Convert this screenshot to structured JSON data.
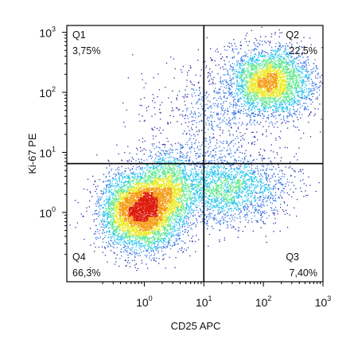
{
  "chart_data": {
    "type": "scatter",
    "subtype": "flow-cytometry-density-dot-plot",
    "xlabel": "CD25 APC",
    "ylabel": "Ki-67 PE",
    "x_scale": "log",
    "y_scale": "log",
    "xlim": [
      0.05,
      1000
    ],
    "ylim": [
      0.07,
      1300
    ],
    "x_ticks": [
      {
        "base": "10",
        "exp": "0",
        "value": 1
      },
      {
        "base": "10",
        "exp": "1",
        "value": 10
      },
      {
        "base": "10",
        "exp": "2",
        "value": 100
      },
      {
        "base": "10",
        "exp": "3",
        "value": 1000
      }
    ],
    "y_ticks": [
      {
        "base": "10",
        "exp": "0",
        "value": 1
      },
      {
        "base": "10",
        "exp": "1",
        "value": 10
      },
      {
        "base": "10",
        "exp": "2",
        "value": 100
      },
      {
        "base": "10",
        "exp": "3",
        "value": 1000
      }
    ],
    "gate": {
      "x": 10,
      "y": 6.5
    },
    "quadrants": [
      {
        "id": "Q1",
        "name": "Q1",
        "percent": "3,75%",
        "position": "top-left"
      },
      {
        "id": "Q2",
        "name": "Q2",
        "percent": "22,5%",
        "position": "top-right"
      },
      {
        "id": "Q3",
        "name": "Q3",
        "percent": "7,40%",
        "position": "bottom-right"
      },
      {
        "id": "Q4",
        "name": "Q4",
        "percent": "66,3%",
        "position": "bottom-left"
      }
    ],
    "populations": [
      {
        "cx": 0.9,
        "cy": 1.05,
        "sx": 0.33,
        "sy": 0.32,
        "n": 5200
      },
      {
        "cx": 2.5,
        "cy": 2.8,
        "sx": 0.25,
        "sy": 0.3,
        "n": 1300
      },
      {
        "cx": 130,
        "cy": 150,
        "sx": 0.35,
        "sy": 0.28,
        "n": 3200
      },
      {
        "cx": 25,
        "cy": 2.5,
        "sx": 0.5,
        "sy": 0.3,
        "n": 2100
      },
      {
        "cx": 12,
        "cy": 40,
        "sx": 0.55,
        "sy": 0.45,
        "n": 650
      }
    ],
    "density_colormap": [
      "#2a2aa8",
      "#2f6fe0",
      "#23c4ee",
      "#62e890",
      "#eaea22",
      "#f59a12",
      "#dd1a0a"
    ],
    "grid": false,
    "legend": "none"
  }
}
